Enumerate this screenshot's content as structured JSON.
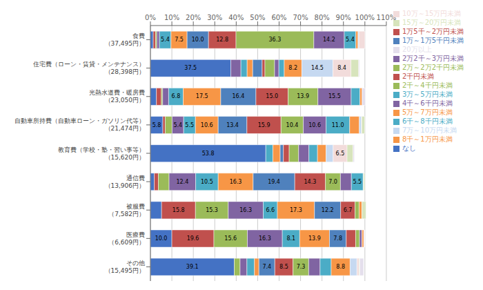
{
  "chart_data": {
    "type": "bar",
    "orientation": "horizontal",
    "stacked": true,
    "grid": true,
    "legend": "right",
    "data_labels": true,
    "categories": [
      "食費（37,495円）",
      "住宅費（ローン・賃貸・メンテナンス）（28,398円）",
      "光熱水道費・暖房費（23,050円）",
      "自動車所持費（自動車ローン・ガソリン代等）（21,474円）",
      "教育費（学校・塾・習い事等）（15,620円）",
      "通信費（13,906円）",
      "被服費（7,582円）",
      "医療費（6,609円）",
      "その他（15,495円）"
    ],
    "series": [
      {
        "name": "なし",
        "color": "#4472c4",
        "values": [
          1.3,
          37.5,
          2.8,
          5.8,
          53.8,
          1.8,
          5.2,
          10.0,
          39.1
        ]
      },
      {
        "name": "2千円未満",
        "color": "#c0504d",
        "values": [
          1.1,
          0.0,
          2.3,
          1.1,
          0.0,
          1.9,
          15.8,
          19.6,
          0.0
        ]
      },
      {
        "name": "2千～4千円未満",
        "color": "#9bbb59",
        "values": [
          0.6,
          0.0,
          0.6,
          3.2,
          0.0,
          5.0,
          15.3,
          15.6,
          2.7
        ]
      },
      {
        "name": "4千～6千円未満",
        "color": "#8064a2",
        "values": [
          1.2,
          4.7,
          2.8,
          5.4,
          0.0,
          12.4,
          16.3,
          16.3,
          3.2
        ]
      },
      {
        "name": "6千～8千円未満",
        "color": "#4bacc6",
        "values": [
          5.4,
          2.9,
          6.8,
          5.5,
          3.3,
          10.5,
          6.6,
          8.1,
          3.5
        ]
      },
      {
        "name": "8千～1万円未満",
        "color": "#f79646",
        "values": [
          7.5,
          2.6,
          17.5,
          10.6,
          3.4,
          16.3,
          17.3,
          13.9,
          2.1
        ]
      },
      {
        "name": "1万～1万5千円未満",
        "color": "#4f81bd",
        "values": [
          10.0,
          4.4,
          16.4,
          13.4,
          1.5,
          19.4,
          12.2,
          7.8,
          7.4
        ]
      },
      {
        "name": "1万5千～2万円未満",
        "color": "#c0504d",
        "values": [
          12.8,
          1.3,
          15.0,
          15.9,
          2.7,
          14.3,
          6.7,
          4.4,
          8.5
        ]
      },
      {
        "name": "2万～2万2千円未満",
        "color": "#9bbb59",
        "values": [
          36.3,
          4.5,
          13.9,
          10.4,
          4.4,
          7.0,
          1.9,
          1.8,
          7.3
        ]
      },
      {
        "name": "2万2千～3万円未満",
        "color": "#8064a2",
        "values": [
          14.2,
          2.0,
          15.5,
          10.6,
          4.8,
          5.1,
          0.0,
          1.1,
          5.3
        ]
      },
      {
        "name": "3万～5万円未満",
        "color": "#4bacc6",
        "values": [
          5.4,
          2.5,
          4.1,
          11.0,
          4.0,
          5.5,
          0.0,
          0.1,
          5.2
        ]
      },
      {
        "name": "5万～7万円未満",
        "color": "#f79646",
        "values": [
          1.0,
          8.2,
          1.0,
          4.5,
          4.0,
          0.1,
          1.3,
          0.8,
          8.8
        ]
      },
      {
        "name": "7万～10万円未満",
        "color": "#c6d9f1",
        "values": [
          0.4,
          14.5,
          0.0,
          1.0,
          3.3,
          0.1,
          0.0,
          0.0,
          3.2
        ]
      },
      {
        "name": "10万～15万円未満",
        "color": "#f2dcdb",
        "values": [
          2.8,
          8.4,
          0.0,
          0.1,
          6.5,
          0.0,
          0.0,
          0.3,
          1.0
        ]
      },
      {
        "name": "15万～20万円未満",
        "color": "#d7e4bc",
        "values": [
          0.0,
          3.6,
          0.0,
          1.4,
          2.8,
          0.6,
          1.9,
          0.0,
          0.3
        ]
      },
      {
        "name": "20万以上",
        "color": "#e4dfec",
        "values": [
          0.0,
          0.4,
          1.5,
          0.0,
          0.6,
          0.0,
          0.0,
          0.2,
          1.8
        ]
      }
    ],
    "xlim": [
      0,
      110
    ],
    "xticks": [
      {
        "value": 0,
        "label": "0%"
      },
      {
        "value": 10,
        "label": "10%"
      },
      {
        "value": 20,
        "label": "20%"
      },
      {
        "value": 30,
        "label": "30%"
      },
      {
        "value": 40,
        "label": "40%"
      },
      {
        "value": 50,
        "label": "50%"
      },
      {
        "value": 60,
        "label": "60%"
      },
      {
        "value": 70,
        "label": "70%"
      },
      {
        "value": 80,
        "label": "80%"
      },
      {
        "value": 90,
        "label": "90%"
      },
      {
        "value": 100,
        "label": "100%"
      },
      {
        "value": 110,
        "label": "110%"
      }
    ]
  }
}
